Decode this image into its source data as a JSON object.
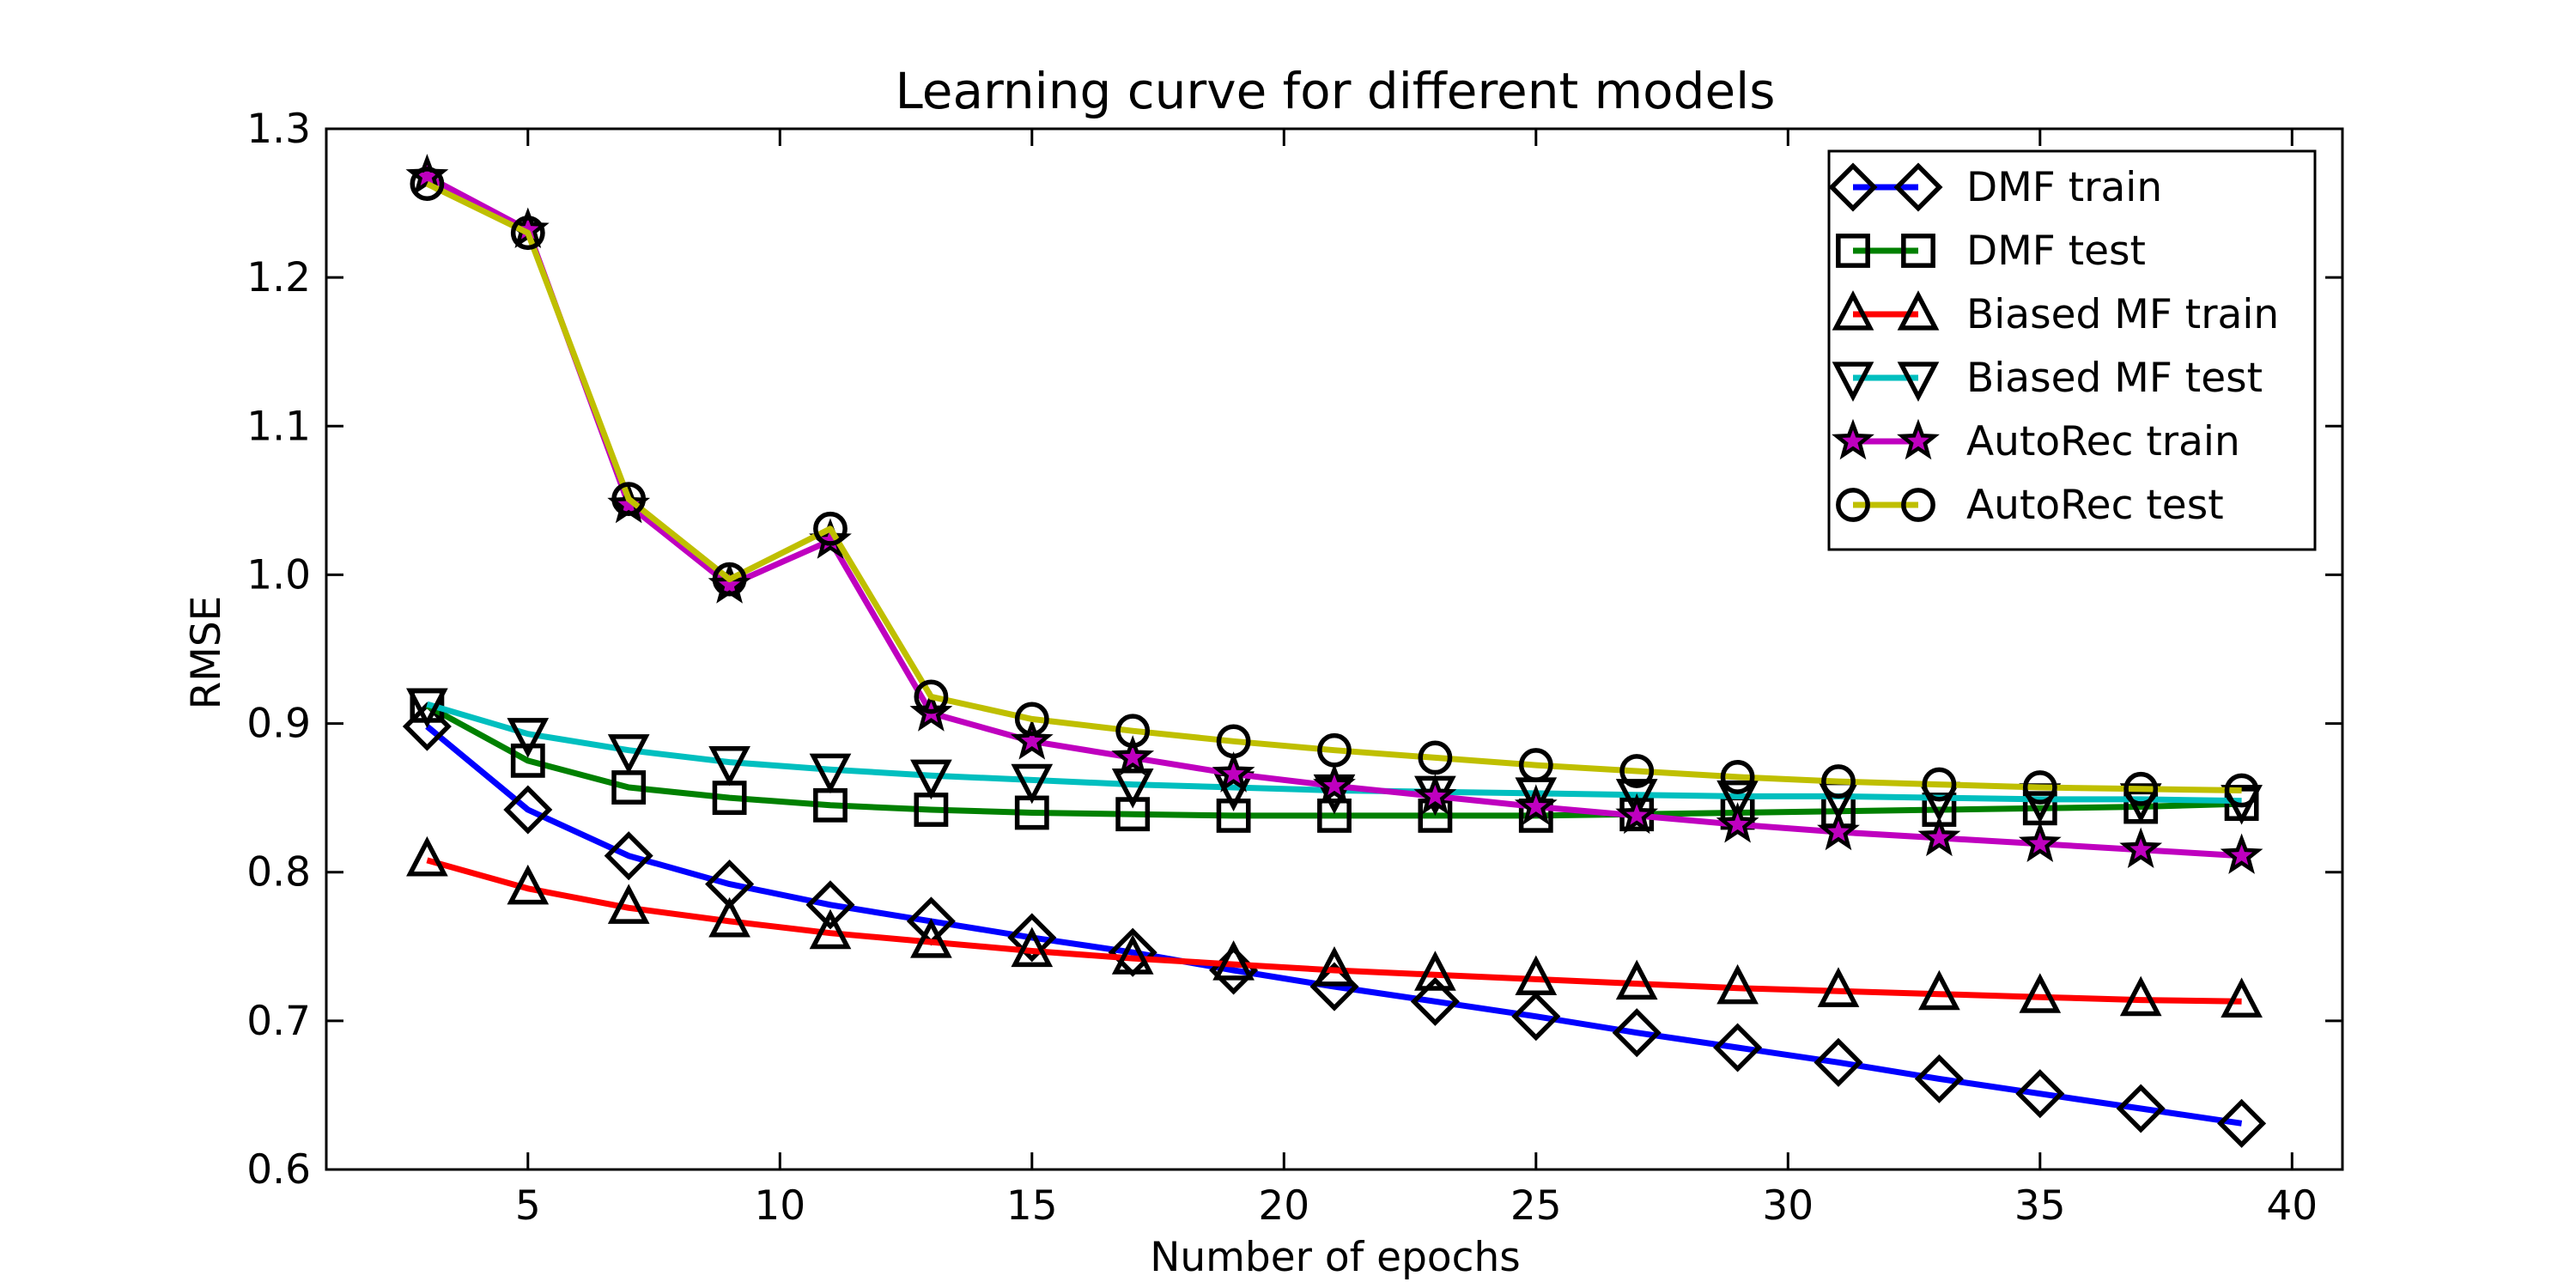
{
  "chart_data": {
    "type": "line",
    "title": "Learning curve for different models",
    "xlabel": "Number of epochs",
    "ylabel": "RMSE",
    "xlim": [
      1,
      41
    ],
    "ylim": [
      0.6,
      1.3
    ],
    "xticks": [
      5,
      10,
      15,
      20,
      25,
      30,
      35,
      40
    ],
    "xtick_labels": [
      "5",
      "10",
      "15",
      "20",
      "25",
      "30",
      "35",
      "40"
    ],
    "yticks": [
      0.6,
      0.7,
      0.8,
      0.9,
      1.0,
      1.1,
      1.2,
      1.3
    ],
    "ytick_labels": [
      "0.6",
      "0.7",
      "0.8",
      "0.9",
      "1.0",
      "1.1",
      "1.2",
      "1.3"
    ],
    "grid": false,
    "legend_position": "top-right",
    "x": [
      3,
      5,
      7,
      9,
      11,
      13,
      15,
      17,
      19,
      21,
      23,
      25,
      27,
      29,
      31,
      33,
      35,
      37,
      39
    ],
    "series": [
      {
        "name": "DMF train",
        "color": "#0000ff",
        "marker": "diamond",
        "values": [
          0.898,
          0.842,
          0.811,
          0.792,
          0.778,
          0.767,
          0.756,
          0.746,
          0.734,
          0.723,
          0.713,
          0.703,
          0.692,
          0.682,
          0.672,
          0.661,
          0.651,
          0.641,
          0.631
        ]
      },
      {
        "name": "DMF test",
        "color": "#008000",
        "marker": "square",
        "values": [
          0.912,
          0.875,
          0.857,
          0.85,
          0.845,
          0.842,
          0.84,
          0.839,
          0.838,
          0.838,
          0.838,
          0.838,
          0.839,
          0.84,
          0.841,
          0.842,
          0.843,
          0.844,
          0.846
        ]
      },
      {
        "name": "Biased MF train",
        "color": "#ff0000",
        "marker": "triangle-up",
        "values": [
          0.808,
          0.789,
          0.776,
          0.767,
          0.759,
          0.753,
          0.747,
          0.742,
          0.738,
          0.734,
          0.731,
          0.728,
          0.725,
          0.722,
          0.72,
          0.718,
          0.716,
          0.714,
          0.713
        ]
      },
      {
        "name": "Biased MF test",
        "color": "#00bfbf",
        "marker": "triangle-down",
        "values": [
          0.913,
          0.893,
          0.882,
          0.874,
          0.869,
          0.865,
          0.862,
          0.859,
          0.857,
          0.855,
          0.854,
          0.853,
          0.852,
          0.851,
          0.851,
          0.85,
          0.849,
          0.849,
          0.848
        ]
      },
      {
        "name": "AutoRec train",
        "color": "#bf00bf",
        "marker": "star",
        "values": [
          1.268,
          1.232,
          1.047,
          0.993,
          1.023,
          0.907,
          0.888,
          0.877,
          0.866,
          0.858,
          0.851,
          0.844,
          0.838,
          0.832,
          0.827,
          0.823,
          0.819,
          0.815,
          0.811
        ]
      },
      {
        "name": "AutoRec test",
        "color": "#bfbf00",
        "marker": "circle",
        "values": [
          1.263,
          1.23,
          1.051,
          0.997,
          1.031,
          0.918,
          0.903,
          0.895,
          0.888,
          0.882,
          0.877,
          0.872,
          0.868,
          0.864,
          0.861,
          0.859,
          0.857,
          0.856,
          0.855
        ]
      }
    ]
  }
}
